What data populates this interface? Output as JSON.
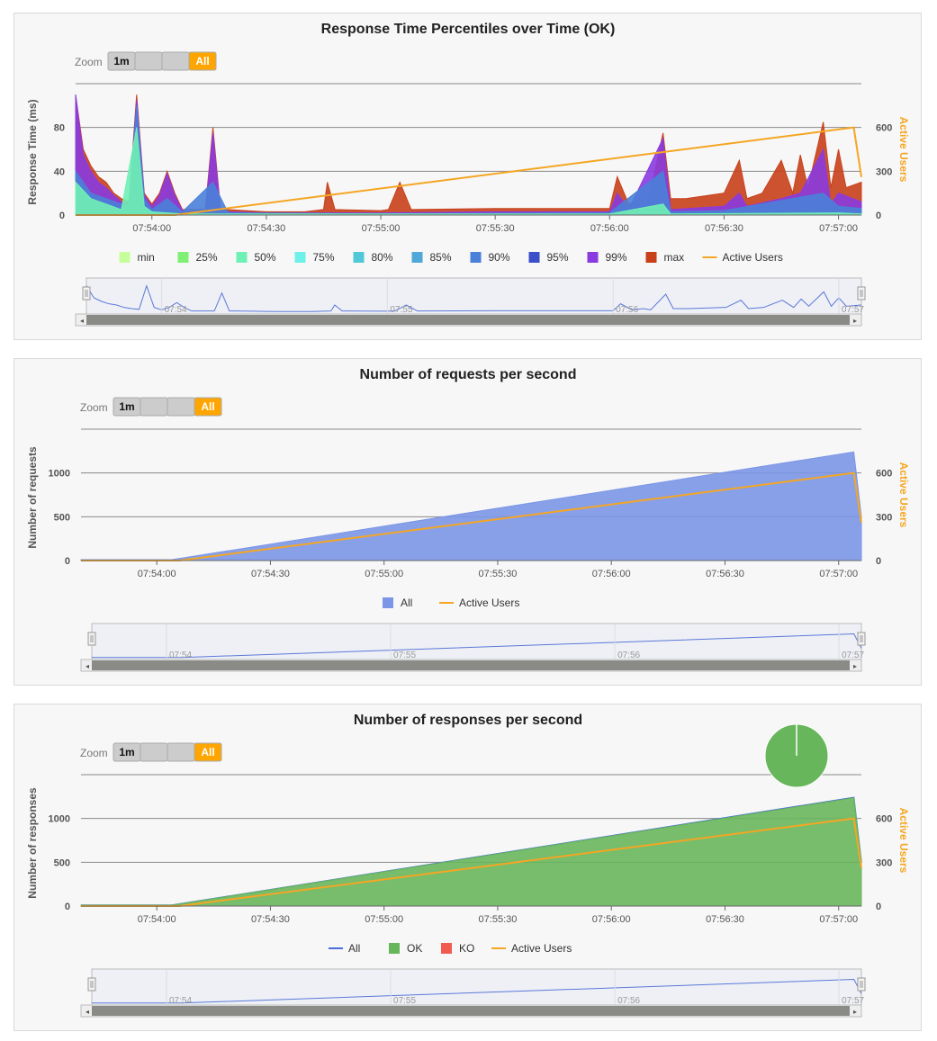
{
  "colors": {
    "active_users": "#f5a623",
    "grid": "#888888",
    "panel_bg": "#f7f7f7",
    "zoom_active": "#ffa500",
    "zoom_btn": "#cccccc"
  },
  "zoom": {
    "label": "Zoom",
    "one_minute": "1m",
    "blank1": "",
    "blank2": "",
    "all": "All"
  },
  "charts": [
    {
      "title": "Response Time Percentiles over Time (OK)",
      "ylabel": "Response Time (ms)",
      "y2label": "Active Users",
      "yticks": [
        "0",
        "40",
        "80"
      ],
      "y2ticks": [
        "0",
        "300",
        "600"
      ],
      "xticks": [
        "07:54:00",
        "07:54:30",
        "07:55:00",
        "07:55:30",
        "07:56:00",
        "07:56:30",
        "07:57:00"
      ],
      "navigator_ticks": [
        "07:54",
        "07:55",
        "07:56",
        "07:57"
      ],
      "legend": [
        {
          "name": "min",
          "color": "#c6ff9a"
        },
        {
          "name": "25%",
          "color": "#7ff075"
        },
        {
          "name": "50%",
          "color": "#6ff0b5"
        },
        {
          "name": "75%",
          "color": "#6ff0e8"
        },
        {
          "name": "80%",
          "color": "#50c8d8"
        },
        {
          "name": "85%",
          "color": "#4fa8d8"
        },
        {
          "name": "90%",
          "color": "#4a80d8"
        },
        {
          "name": "95%",
          "color": "#3b4fc8"
        },
        {
          "name": "99%",
          "color": "#8a3be0"
        },
        {
          "name": "max",
          "color": "#c8401a"
        },
        {
          "name": "Active Users",
          "color": "#f5a623",
          "line": true
        }
      ]
    },
    {
      "title": "Number of requests per second",
      "ylabel": "Number of requests",
      "y2label": "Active Users",
      "yticks": [
        "0",
        "500",
        "1000"
      ],
      "y2ticks": [
        "0",
        "300",
        "600"
      ],
      "xticks": [
        "07:54:00",
        "07:54:30",
        "07:55:00",
        "07:55:30",
        "07:56:00",
        "07:56:30",
        "07:57:00"
      ],
      "navigator_ticks": [
        "07:54",
        "07:55",
        "07:56",
        "07:57"
      ],
      "legend": [
        {
          "name": "All",
          "color": "#7b96e6"
        },
        {
          "name": "Active Users",
          "color": "#f5a623",
          "line": true
        }
      ]
    },
    {
      "title": "Number of responses per second",
      "ylabel": "Number of responses",
      "y2label": "Active Users",
      "yticks": [
        "0",
        "500",
        "1000"
      ],
      "y2ticks": [
        "0",
        "300",
        "600"
      ],
      "xticks": [
        "07:54:00",
        "07:54:30",
        "07:55:00",
        "07:55:30",
        "07:56:00",
        "07:56:30",
        "07:57:00"
      ],
      "navigator_ticks": [
        "07:54",
        "07:55",
        "07:56",
        "07:57"
      ],
      "legend": [
        {
          "name": "All",
          "color": "#4a6fd8",
          "line": true
        },
        {
          "name": "OK",
          "color": "#68b65c"
        },
        {
          "name": "KO",
          "color": "#f15b4f"
        },
        {
          "name": "Active Users",
          "color": "#f5a623",
          "line": true
        }
      ],
      "pie": {
        "ok_fraction": 0.998,
        "ok_color": "#68b65c",
        "ko_color": "#f15b4f"
      }
    }
  ],
  "chart_data": [
    {
      "type": "area",
      "title": "Response Time Percentiles over Time (OK)",
      "ylabel": "Response Time (ms)",
      "y2label": "Active Users",
      "x_range": [
        "07:53:40",
        "07:57:06"
      ],
      "ylim": [
        0,
        120
      ],
      "y2lim": [
        0,
        900
      ],
      "series": [
        {
          "name": "max",
          "values": [
            [
              "07:53:40",
              110
            ],
            [
              "07:53:42",
              60
            ],
            [
              "07:53:44",
              45
            ],
            [
              "07:53:46",
              35
            ],
            [
              "07:53:48",
              30
            ],
            [
              "07:53:50",
              20
            ],
            [
              "07:53:52",
              15
            ],
            [
              "07:53:54",
              12
            ],
            [
              "07:53:56",
              110
            ],
            [
              "07:53:58",
              20
            ],
            [
              "07:54:00",
              10
            ],
            [
              "07:54:02",
              20
            ],
            [
              "07:54:04",
              40
            ],
            [
              "07:54:06",
              20
            ],
            [
              "07:54:08",
              5
            ],
            [
              "07:54:10",
              5
            ],
            [
              "07:54:12",
              5
            ],
            [
              "07:54:14",
              5
            ],
            [
              "07:54:16",
              80
            ],
            [
              "07:54:18",
              5
            ],
            [
              "07:54:20",
              5
            ],
            [
              "07:54:30",
              3
            ],
            [
              "07:54:40",
              3
            ],
            [
              "07:54:45",
              5
            ],
            [
              "07:54:46",
              30
            ],
            [
              "07:54:48",
              5
            ],
            [
              "07:55:00",
              4
            ],
            [
              "07:55:02",
              5
            ],
            [
              "07:55:05",
              30
            ],
            [
              "07:55:08",
              5
            ],
            [
              "07:55:30",
              6
            ],
            [
              "07:56:00",
              6
            ],
            [
              "07:56:02",
              35
            ],
            [
              "07:56:05",
              10
            ],
            [
              "07:56:08",
              15
            ],
            [
              "07:56:10",
              10
            ],
            [
              "07:56:14",
              75
            ],
            [
              "07:56:16",
              15
            ],
            [
              "07:56:20",
              15
            ],
            [
              "07:56:30",
              20
            ],
            [
              "07:56:34",
              50
            ],
            [
              "07:56:36",
              15
            ],
            [
              "07:56:40",
              20
            ],
            [
              "07:56:45",
              50
            ],
            [
              "07:56:48",
              20
            ],
            [
              "07:56:50",
              55
            ],
            [
              "07:56:52",
              25
            ],
            [
              "07:56:56",
              85
            ],
            [
              "07:56:58",
              25
            ],
            [
              "07:57:00",
              60
            ],
            [
              "07:57:02",
              25
            ],
            [
              "07:57:06",
              30
            ]
          ]
        },
        {
          "name": "99%",
          "values": [
            [
              "07:53:40",
              110
            ],
            [
              "07:53:42",
              55
            ],
            [
              "07:53:44",
              40
            ],
            [
              "07:53:46",
              30
            ],
            [
              "07:53:48",
              25
            ],
            [
              "07:53:50",
              18
            ],
            [
              "07:53:52",
              12
            ],
            [
              "07:53:54",
              10
            ],
            [
              "07:53:56",
              105
            ],
            [
              "07:53:58",
              18
            ],
            [
              "07:54:00",
              8
            ],
            [
              "07:54:02",
              18
            ],
            [
              "07:54:04",
              38
            ],
            [
              "07:54:06",
              18
            ],
            [
              "07:54:08",
              4
            ],
            [
              "07:54:10",
              4
            ],
            [
              "07:54:12",
              4
            ],
            [
              "07:54:14",
              4
            ],
            [
              "07:54:16",
              75
            ],
            [
              "07:54:18",
              4
            ],
            [
              "07:54:20",
              3
            ],
            [
              "07:54:30",
              2
            ],
            [
              "07:55:00",
              2
            ],
            [
              "07:55:30",
              3
            ],
            [
              "07:56:00",
              3
            ],
            [
              "07:56:02",
              20
            ],
            [
              "07:56:05",
              5
            ],
            [
              "07:56:14",
              70
            ],
            [
              "07:56:16",
              5
            ],
            [
              "07:56:30",
              8
            ],
            [
              "07:56:34",
              20
            ],
            [
              "07:56:36",
              8
            ],
            [
              "07:56:45",
              15
            ],
            [
              "07:56:50",
              20
            ],
            [
              "07:56:56",
              60
            ],
            [
              "07:56:58",
              10
            ],
            [
              "07:57:00",
              20
            ],
            [
              "07:57:06",
              12
            ]
          ]
        },
        {
          "name": "90%",
          "values": [
            [
              "07:53:40",
              40
            ],
            [
              "07:53:44",
              20
            ],
            [
              "07:53:48",
              15
            ],
            [
              "07:53:52",
              10
            ],
            [
              "07:53:54",
              8
            ],
            [
              "07:53:56",
              100
            ],
            [
              "07:53:58",
              15
            ],
            [
              "07:54:00",
              5
            ],
            [
              "07:54:04",
              15
            ],
            [
              "07:54:08",
              3
            ],
            [
              "07:54:16",
              30
            ],
            [
              "07:54:20",
              2
            ],
            [
              "07:55:00",
              1
            ],
            [
              "07:56:00",
              2
            ],
            [
              "07:56:14",
              40
            ],
            [
              "07:56:16",
              3
            ],
            [
              "07:56:30",
              4
            ],
            [
              "07:56:56",
              20
            ],
            [
              "07:57:00",
              8
            ],
            [
              "07:57:06",
              6
            ]
          ]
        },
        {
          "name": "50%",
          "values": [
            [
              "07:53:40",
              30
            ],
            [
              "07:53:44",
              15
            ],
            [
              "07:53:48",
              10
            ],
            [
              "07:53:52",
              5
            ],
            [
              "07:53:56",
              80
            ],
            [
              "07:53:58",
              8
            ],
            [
              "07:54:00",
              3
            ],
            [
              "07:54:08",
              1
            ],
            [
              "07:54:20",
              1
            ],
            [
              "07:55:00",
              1
            ],
            [
              "07:56:00",
              1
            ],
            [
              "07:56:14",
              10
            ],
            [
              "07:56:16",
              1
            ],
            [
              "07:57:00",
              2
            ],
            [
              "07:57:06",
              1
            ]
          ]
        },
        {
          "name": "Active Users",
          "axis": "y2",
          "values": [
            [
              "07:53:40",
              0
            ],
            [
              "07:54:06",
              0
            ],
            [
              "07:57:04",
              600
            ],
            [
              "07:57:06",
              260
            ]
          ]
        }
      ]
    },
    {
      "type": "area",
      "title": "Number of requests per second",
      "ylabel": "Number of requests",
      "y2label": "Active Users",
      "x_range": [
        "07:53:40",
        "07:57:06"
      ],
      "ylim": [
        0,
        1500
      ],
      "y2lim": [
        0,
        900
      ],
      "series": [
        {
          "name": "All",
          "values": [
            [
              "07:53:40",
              10
            ],
            [
              "07:54:04",
              10
            ],
            [
              "07:57:04",
              1240
            ],
            [
              "07:57:06",
              500
            ]
          ]
        },
        {
          "name": "Active Users",
          "axis": "y2",
          "values": [
            [
              "07:53:40",
              0
            ],
            [
              "07:54:06",
              0
            ],
            [
              "07:57:04",
              600
            ],
            [
              "07:57:06",
              260
            ]
          ]
        }
      ]
    },
    {
      "type": "area",
      "title": "Number of responses per second",
      "ylabel": "Number of responses",
      "y2label": "Active Users",
      "x_range": [
        "07:53:40",
        "07:57:06"
      ],
      "ylim": [
        0,
        1500
      ],
      "y2lim": [
        0,
        900
      ],
      "series": [
        {
          "name": "All",
          "values": [
            [
              "07:53:40",
              10
            ],
            [
              "07:54:04",
              10
            ],
            [
              "07:57:04",
              1240
            ],
            [
              "07:57:06",
              500
            ]
          ]
        },
        {
          "name": "OK",
          "values": [
            [
              "07:53:40",
              10
            ],
            [
              "07:54:04",
              10
            ],
            [
              "07:57:04",
              1235
            ],
            [
              "07:57:06",
              500
            ]
          ]
        },
        {
          "name": "KO",
          "values": [
            [
              "07:53:40",
              0
            ],
            [
              "07:57:06",
              0
            ]
          ]
        },
        {
          "name": "Active Users",
          "axis": "y2",
          "values": [
            [
              "07:53:40",
              0
            ],
            [
              "07:54:06",
              0
            ],
            [
              "07:57:04",
              600
            ],
            [
              "07:57:06",
              260
            ]
          ]
        }
      ]
    }
  ]
}
